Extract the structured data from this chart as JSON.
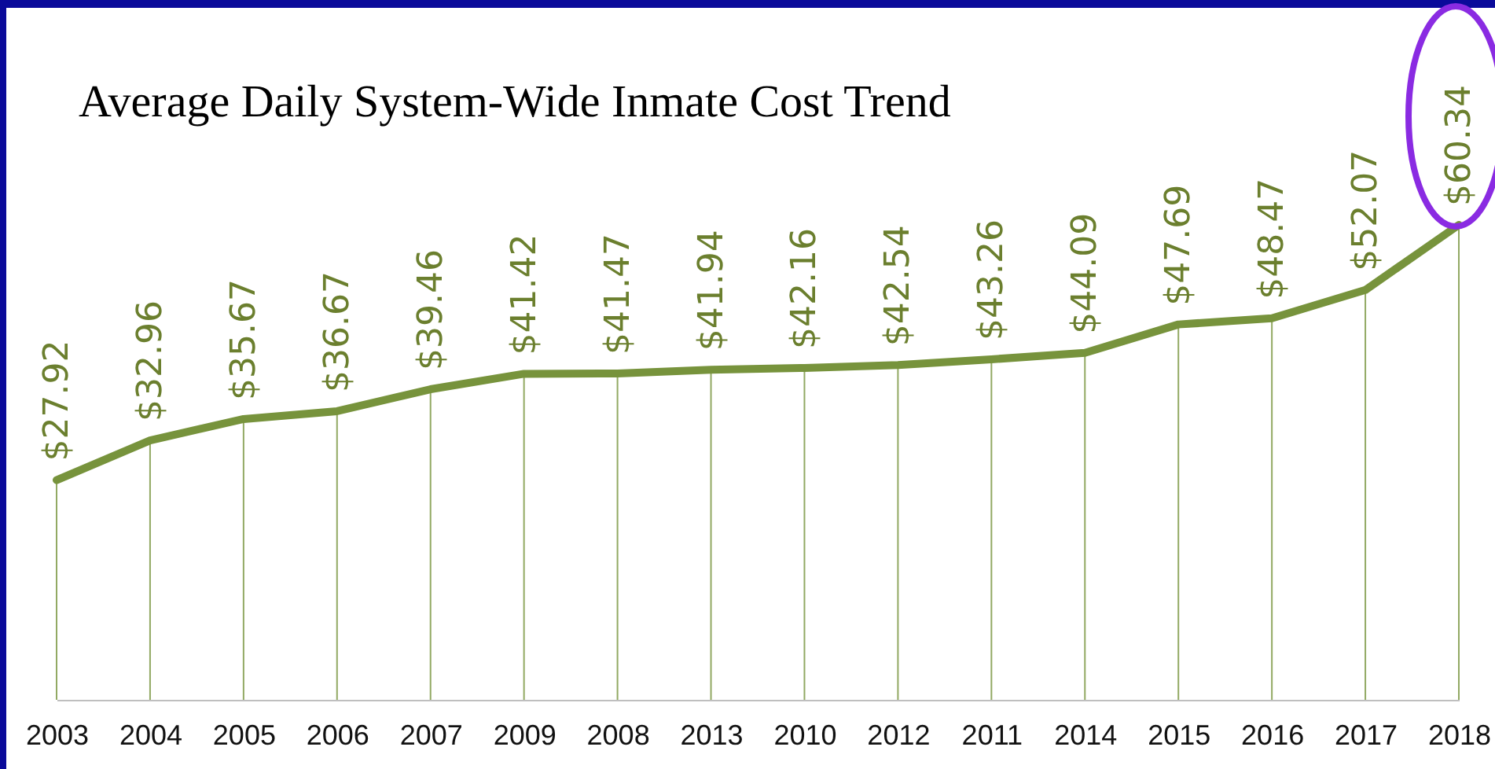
{
  "chart_data": {
    "type": "line",
    "title": "Average Daily System-Wide Inmate Cost Trend",
    "categories": [
      "2003",
      "2004",
      "2005",
      "2006",
      "2007",
      "2009",
      "2008",
      "2013",
      "2010",
      "2012",
      "2011",
      "2014",
      "2015",
      "2016",
      "2017",
      "2018"
    ],
    "series": [
      {
        "color": "#77933c",
        "values": [
          27.92,
          32.96,
          35.67,
          36.67,
          39.46,
          41.42,
          41.47,
          41.94,
          42.16,
          42.54,
          43.26,
          44.09,
          47.69,
          48.47,
          52.07,
          60.34
        ],
        "value_labels": [
          "$27.92",
          "$32.96",
          "$35.67",
          "$36.67",
          "$39.46",
          "$41.42",
          "$41.47",
          "$41.94",
          "$42.16",
          "$42.54",
          "$43.26",
          "$44.09",
          "$47.69",
          "$48.47",
          "$52.07",
          "$60.34"
        ]
      }
    ],
    "marker": "none",
    "grid": "x"
  }
}
